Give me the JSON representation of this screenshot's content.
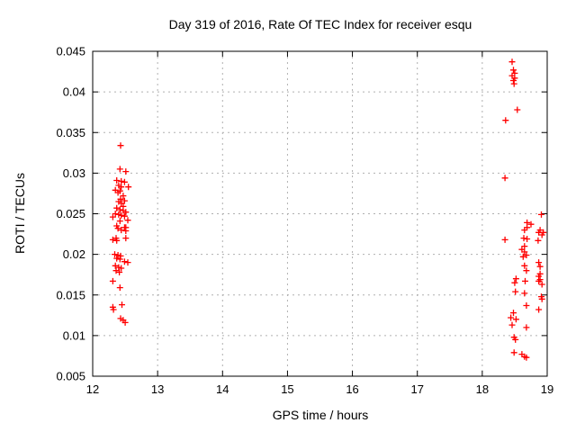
{
  "window": {
    "background": "#ffffff"
  },
  "chart_data": {
    "type": "scatter",
    "title": "Day 319 of 2016, Rate Of TEC Index for receiver esqu",
    "xlabel": "GPS time / hours",
    "ylabel": "ROTI / TECUs",
    "xlim": [
      12,
      19
    ],
    "ylim": [
      0.005,
      0.045
    ],
    "grid": true,
    "legend": false,
    "xticks": {
      "values": [
        12,
        13,
        14,
        15,
        16,
        17,
        18,
        19
      ],
      "labels": [
        "12",
        "13",
        "14",
        "15",
        "16",
        "17",
        "18",
        "19"
      ]
    },
    "yticks": {
      "values": [
        0.005,
        0.01,
        0.015,
        0.02,
        0.025,
        0.03,
        0.035,
        0.04,
        0.045
      ],
      "labels": [
        "0.005",
        "0.01",
        "0.015",
        "0.02",
        "0.025",
        "0.03",
        "0.035",
        "0.04",
        "0.045"
      ]
    },
    "marker": {
      "shape": "plus",
      "color": "#ff0000",
      "size": 7
    },
    "colors": {
      "axis": "#000000",
      "grid": "#b0b0b0",
      "background": "#ffffff"
    },
    "points": [
      [
        12.43,
        0.0334
      ],
      [
        12.42,
        0.0305
      ],
      [
        12.51,
        0.0302
      ],
      [
        12.37,
        0.0291
      ],
      [
        12.44,
        0.029
      ],
      [
        12.49,
        0.0289
      ],
      [
        12.4,
        0.0285
      ],
      [
        12.44,
        0.0283
      ],
      [
        12.55,
        0.0283
      ],
      [
        12.35,
        0.0279
      ],
      [
        12.42,
        0.0278
      ],
      [
        12.39,
        0.0276
      ],
      [
        12.47,
        0.0272
      ],
      [
        12.43,
        0.0268
      ],
      [
        12.49,
        0.0266
      ],
      [
        12.4,
        0.0265
      ],
      [
        12.44,
        0.0263
      ],
      [
        12.47,
        0.0259
      ],
      [
        12.37,
        0.0257
      ],
      [
        12.42,
        0.0255
      ],
      [
        12.47,
        0.0254
      ],
      [
        12.51,
        0.0252
      ],
      [
        12.35,
        0.025
      ],
      [
        12.4,
        0.0249
      ],
      [
        12.44,
        0.0248
      ],
      [
        12.49,
        0.0247
      ],
      [
        12.31,
        0.0246
      ],
      [
        12.54,
        0.0242
      ],
      [
        12.42,
        0.0241
      ],
      [
        12.37,
        0.0235
      ],
      [
        12.49,
        0.0233
      ],
      [
        12.44,
        0.023
      ],
      [
        12.39,
        0.0232
      ],
      [
        12.51,
        0.0233
      ],
      [
        12.51,
        0.0229
      ],
      [
        12.31,
        0.0218
      ],
      [
        12.36,
        0.022
      ],
      [
        12.51,
        0.022
      ],
      [
        12.37,
        0.0217
      ],
      [
        12.34,
        0.02
      ],
      [
        12.39,
        0.0199
      ],
      [
        12.43,
        0.0198
      ],
      [
        12.37,
        0.0195
      ],
      [
        12.42,
        0.0194
      ],
      [
        12.49,
        0.0191
      ],
      [
        12.54,
        0.019
      ],
      [
        12.35,
        0.0186
      ],
      [
        12.4,
        0.0184
      ],
      [
        12.44,
        0.0183
      ],
      [
        12.36,
        0.018
      ],
      [
        12.41,
        0.0178
      ],
      [
        12.31,
        0.0167
      ],
      [
        12.42,
        0.0159
      ],
      [
        12.45,
        0.0138
      ],
      [
        12.31,
        0.0135
      ],
      [
        12.32,
        0.0132
      ],
      [
        12.43,
        0.0121
      ],
      [
        12.47,
        0.0119
      ],
      [
        12.5,
        0.0116
      ],
      [
        18.46,
        0.0437
      ],
      [
        18.48,
        0.0427
      ],
      [
        18.5,
        0.0423
      ],
      [
        18.46,
        0.042
      ],
      [
        18.5,
        0.0417
      ],
      [
        18.48,
        0.0414
      ],
      [
        18.49,
        0.041
      ],
      [
        18.54,
        0.0378
      ],
      [
        18.36,
        0.0365
      ],
      [
        18.35,
        0.0294
      ],
      [
        18.91,
        0.0249
      ],
      [
        18.69,
        0.0239
      ],
      [
        18.75,
        0.0237
      ],
      [
        18.69,
        0.0233
      ],
      [
        18.65,
        0.023
      ],
      [
        18.89,
        0.023
      ],
      [
        18.94,
        0.0227
      ],
      [
        18.87,
        0.0227
      ],
      [
        18.92,
        0.0224
      ],
      [
        18.64,
        0.022
      ],
      [
        18.69,
        0.0219
      ],
      [
        18.35,
        0.0218
      ],
      [
        18.86,
        0.0217
      ],
      [
        18.65,
        0.021
      ],
      [
        18.61,
        0.0206
      ],
      [
        18.65,
        0.0203
      ],
      [
        18.68,
        0.0199
      ],
      [
        18.63,
        0.0197
      ],
      [
        18.87,
        0.019
      ],
      [
        18.65,
        0.0186
      ],
      [
        18.89,
        0.0185
      ],
      [
        18.68,
        0.018
      ],
      [
        18.87,
        0.0173
      ],
      [
        18.52,
        0.017
      ],
      [
        18.89,
        0.0169
      ],
      [
        18.89,
        0.0176
      ],
      [
        18.5,
        0.0165
      ],
      [
        18.66,
        0.0167
      ],
      [
        18.87,
        0.0167
      ],
      [
        18.92,
        0.0163
      ],
      [
        18.51,
        0.0154
      ],
      [
        18.65,
        0.0152
      ],
      [
        18.91,
        0.0148
      ],
      [
        18.92,
        0.0145
      ],
      [
        18.68,
        0.0137
      ],
      [
        18.87,
        0.0132
      ],
      [
        18.48,
        0.0128
      ],
      [
        18.44,
        0.0122
      ],
      [
        18.52,
        0.012
      ],
      [
        18.46,
        0.0113
      ],
      [
        18.68,
        0.011
      ],
      [
        18.49,
        0.0098
      ],
      [
        18.51,
        0.0095
      ],
      [
        18.49,
        0.0079
      ],
      [
        18.61,
        0.0077
      ],
      [
        18.65,
        0.0074
      ],
      [
        18.68,
        0.0073
      ]
    ]
  }
}
